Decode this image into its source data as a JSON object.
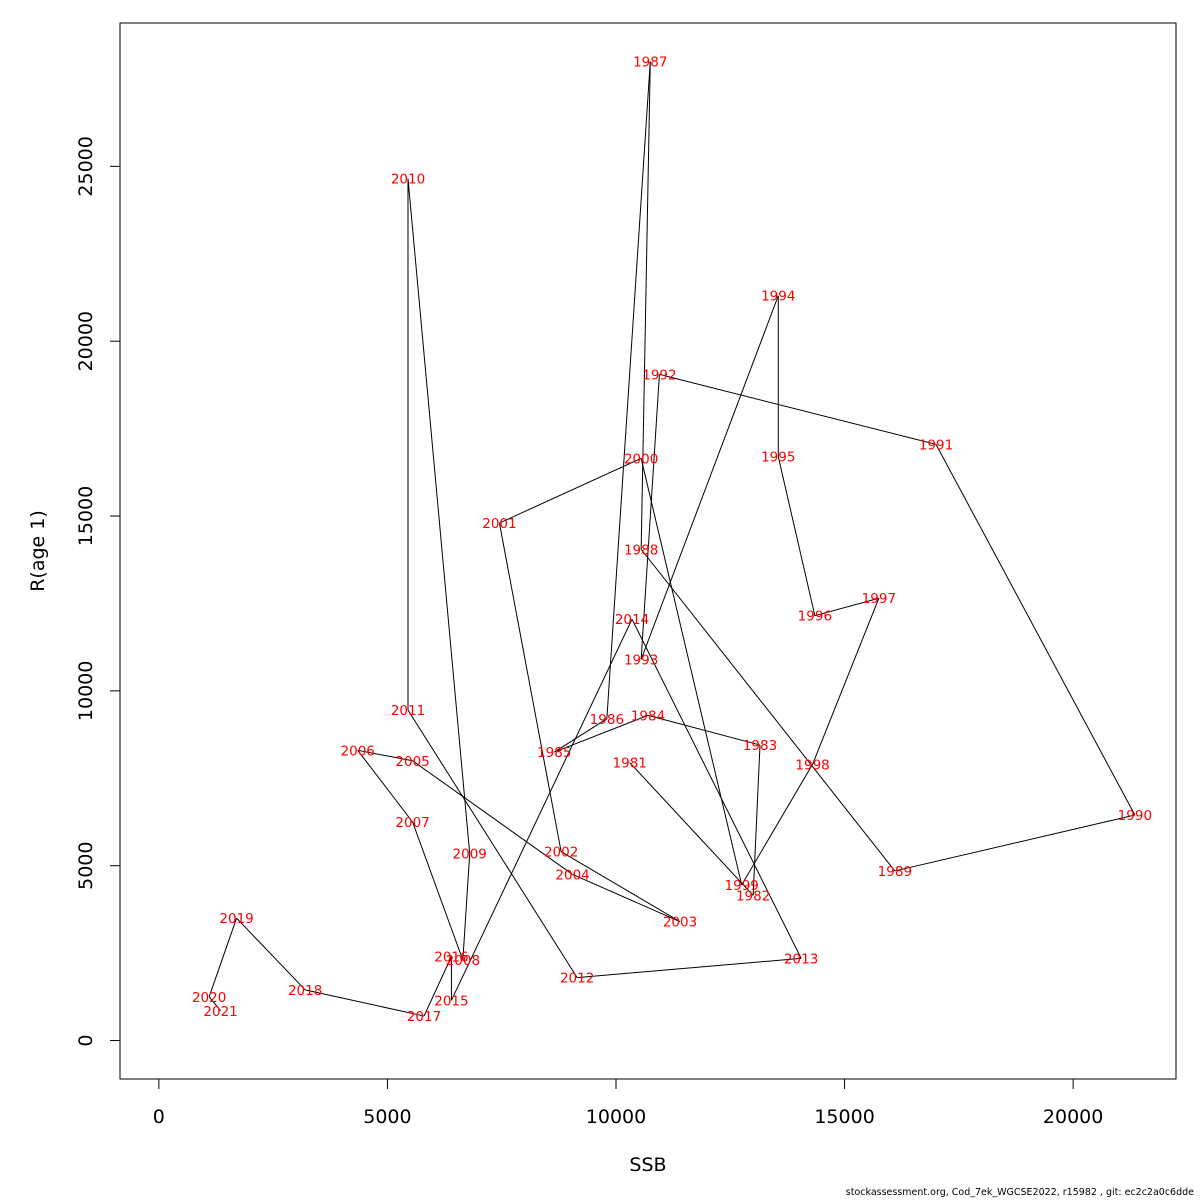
{
  "chart_data": {
    "type": "line",
    "xlabel": "SSB",
    "ylabel": "R(age 1)",
    "xlim": [
      -850,
      22250
    ],
    "ylim": [
      -1100,
      29100
    ],
    "x_ticks": [
      0,
      5000,
      10000,
      15000,
      20000
    ],
    "y_ticks": [
      0,
      5000,
      10000,
      15000,
      20000,
      25000
    ],
    "grid": false,
    "line_color": "#000000",
    "label_color": "#ff0000",
    "points": [
      {
        "year": "1981",
        "x": 10300,
        "y": 7950
      },
      {
        "year": "1982",
        "x": 13000,
        "y": 4150
      },
      {
        "year": "1983",
        "x": 13150,
        "y": 8450
      },
      {
        "year": "1984",
        "x": 10700,
        "y": 9300
      },
      {
        "year": "1985",
        "x": 8650,
        "y": 8250
      },
      {
        "year": "1986",
        "x": 9800,
        "y": 9200
      },
      {
        "year": "1987",
        "x": 10750,
        "y": 28000
      },
      {
        "year": "1988",
        "x": 10550,
        "y": 14050
      },
      {
        "year": "1989",
        "x": 16100,
        "y": 4850
      },
      {
        "year": "1990",
        "x": 21350,
        "y": 6450
      },
      {
        "year": "1991",
        "x": 17000,
        "y": 17050
      },
      {
        "year": "1992",
        "x": 10950,
        "y": 19050
      },
      {
        "year": "1993",
        "x": 10550,
        "y": 10900
      },
      {
        "year": "1994",
        "x": 13550,
        "y": 21300
      },
      {
        "year": "1995",
        "x": 13550,
        "y": 16700
      },
      {
        "year": "1996",
        "x": 14350,
        "y": 12150
      },
      {
        "year": "1997",
        "x": 15750,
        "y": 12650
      },
      {
        "year": "1998",
        "x": 14300,
        "y": 7900
      },
      {
        "year": "1999",
        "x": 12750,
        "y": 4450
      },
      {
        "year": "2000",
        "x": 10550,
        "y": 16650
      },
      {
        "year": "2001",
        "x": 7450,
        "y": 14800
      },
      {
        "year": "2002",
        "x": 8800,
        "y": 5400
      },
      {
        "year": "2003",
        "x": 11400,
        "y": 3400
      },
      {
        "year": "2004",
        "x": 9050,
        "y": 4750
      },
      {
        "year": "2005",
        "x": 5550,
        "y": 8000
      },
      {
        "year": "2006",
        "x": 4350,
        "y": 8300
      },
      {
        "year": "2007",
        "x": 5550,
        "y": 6250
      },
      {
        "year": "2008",
        "x": 6650,
        "y": 2300
      },
      {
        "year": "2009",
        "x": 6800,
        "y": 5350
      },
      {
        "year": "2010",
        "x": 5450,
        "y": 24650
      },
      {
        "year": "2011",
        "x": 5450,
        "y": 9450
      },
      {
        "year": "2012",
        "x": 9150,
        "y": 1800
      },
      {
        "year": "2013",
        "x": 14050,
        "y": 2350
      },
      {
        "year": "2014",
        "x": 10350,
        "y": 12050
      },
      {
        "year": "2015",
        "x": 6400,
        "y": 1150
      },
      {
        "year": "2016",
        "x": 6400,
        "y": 2400
      },
      {
        "year": "2017",
        "x": 5800,
        "y": 700
      },
      {
        "year": "2018",
        "x": 3200,
        "y": 1450
      },
      {
        "year": "2019",
        "x": 1700,
        "y": 3500
      },
      {
        "year": "2020",
        "x": 1100,
        "y": 1250
      },
      {
        "year": "2021",
        "x": 1350,
        "y": 850
      }
    ]
  },
  "footer": "stockassessment.org, Cod_7ek_WGCSE2022, r15982 , git: ec2c2a0c6dde"
}
